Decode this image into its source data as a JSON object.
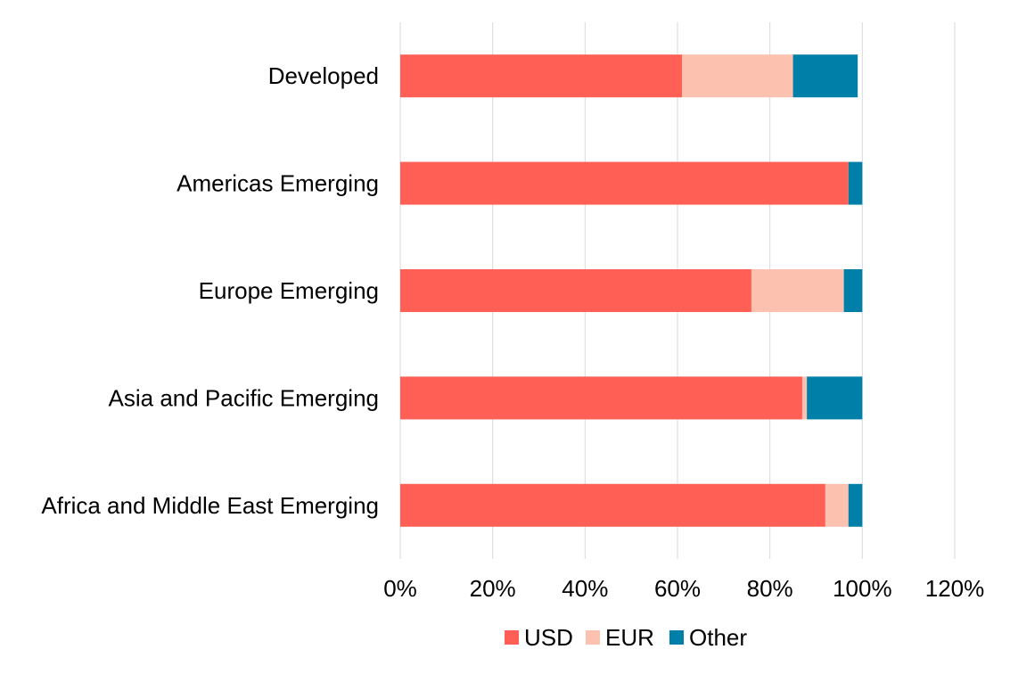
{
  "chart_data": {
    "type": "bar",
    "orientation": "horizontal",
    "stacked": true,
    "categories": [
      "Developed",
      "Americas Emerging",
      "Europe Emerging",
      "Asia and Pacific Emerging",
      "Africa and Middle East Emerging"
    ],
    "series": [
      {
        "name": "USD",
        "color": "#ff5f55",
        "values": [
          61,
          97,
          76,
          87,
          92
        ]
      },
      {
        "name": "EUR",
        "color": "#fdc1b0",
        "values": [
          24,
          0,
          20,
          1,
          5
        ]
      },
      {
        "name": "Other",
        "color": "#0080a8",
        "values": [
          14,
          3,
          4,
          12,
          3
        ]
      }
    ],
    "xlim": [
      0,
      120
    ],
    "xticks": [
      "0%",
      "20%",
      "40%",
      "60%",
      "80%",
      "100%",
      "120%"
    ],
    "grid": true,
    "legend_position": "bottom"
  }
}
